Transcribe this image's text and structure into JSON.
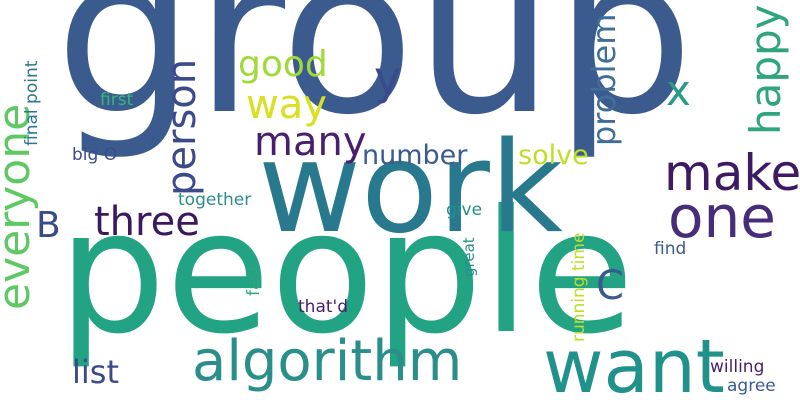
{
  "colors": {
    "background": "#ffffff",
    "navy": "#3b5b8f",
    "blue": "#3f6e9a",
    "teal": "#21918c",
    "tealdark": "#28788e",
    "green": "#2ea57c",
    "lightgreen": "#5ec962",
    "lime": "#a0da39",
    "yellow": "#d9e021",
    "purple": "#481f6e",
    "indigo": "#3b4a8a"
  },
  "words": [
    {
      "id": "group",
      "text": "group"
    },
    {
      "id": "people",
      "text": "people"
    },
    {
      "id": "work",
      "text": "work"
    },
    {
      "id": "want",
      "text": "want"
    },
    {
      "id": "algorithm",
      "text": "algorithm"
    },
    {
      "id": "one",
      "text": "one"
    },
    {
      "id": "make",
      "text": "make"
    },
    {
      "id": "everyone",
      "text": "everyone"
    },
    {
      "id": "person",
      "text": "person"
    },
    {
      "id": "three",
      "text": "three"
    },
    {
      "id": "many",
      "text": "many"
    },
    {
      "id": "way",
      "text": "way"
    },
    {
      "id": "good",
      "text": "good"
    },
    {
      "id": "y",
      "text": "y"
    },
    {
      "id": "x",
      "text": "x"
    },
    {
      "id": "happy",
      "text": "happy"
    },
    {
      "id": "problem",
      "text": "problem"
    },
    {
      "id": "number",
      "text": "number"
    },
    {
      "id": "solve",
      "text": "solve"
    },
    {
      "id": "B",
      "text": "B"
    },
    {
      "id": "C",
      "text": "C"
    },
    {
      "id": "list",
      "text": "list"
    },
    {
      "id": "final-point",
      "text": "final point"
    },
    {
      "id": "first",
      "text": "first"
    },
    {
      "id": "big-O",
      "text": "big O"
    },
    {
      "id": "together",
      "text": "together"
    },
    {
      "id": "give",
      "text": "give"
    },
    {
      "id": "great",
      "text": "great"
    },
    {
      "id": "fast",
      "text": "fast"
    },
    {
      "id": "running-time",
      "text": "running time"
    },
    {
      "id": "find",
      "text": "find"
    },
    {
      "id": "thatd",
      "text": "that'd"
    },
    {
      "id": "willing",
      "text": "willing"
    },
    {
      "id": "agree",
      "text": "agree"
    }
  ]
}
